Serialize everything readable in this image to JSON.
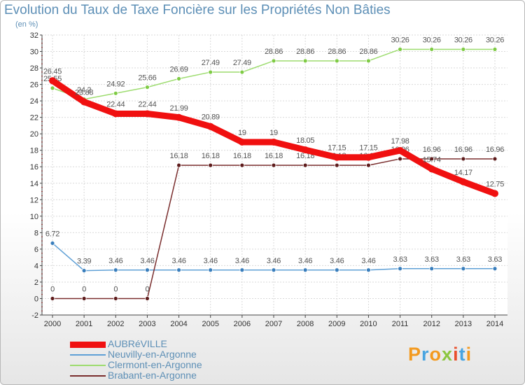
{
  "title": "Evolution du Taux de Taxe Foncière sur les Propriétés Non Bâties",
  "subtitle": "(en %)",
  "logo_letters": [
    "P",
    "r",
    "o",
    "x",
    "i",
    "t",
    "i"
  ],
  "logo_colors": [
    "#f39a1f",
    "#48a4e0",
    "#f39a1f",
    "#8cc63f",
    "#e94f2d",
    "#48a4e0",
    "#f39a1f"
  ],
  "chart_data": {
    "type": "line",
    "title": "Evolution du Taux de Taxe Foncière sur les Propriétés Non Bâties",
    "ylabel": "(en %)",
    "xlabel": "",
    "x": [
      "2000",
      "2001",
      "2002",
      "2003",
      "2004",
      "2005",
      "2006",
      "2007",
      "2008",
      "2009",
      "2010",
      "2011",
      "2012",
      "2013",
      "2014"
    ],
    "y_ticks": [
      -2,
      0,
      2,
      4,
      6,
      8,
      10,
      12,
      14,
      16,
      18,
      20,
      22,
      24,
      26,
      28,
      30,
      32
    ],
    "ylim": [
      -2,
      32
    ],
    "grid": true,
    "legend_position": "bottom-left",
    "series": [
      {
        "name": "Neuvilly-en-Argonne",
        "color": "#5fa0d6",
        "marker": "#3a7ebc",
        "thick": false,
        "values": [
          6.72,
          3.39,
          3.46,
          3.46,
          3.46,
          3.46,
          3.46,
          3.46,
          3.46,
          3.46,
          3.46,
          3.63,
          3.63,
          3.63,
          3.63
        ],
        "labels": [
          "6.72",
          "3.39",
          "3.46",
          "3.46",
          "3.46",
          "3.46",
          "3.46",
          "3.46",
          "3.46",
          "3.46",
          "3.46",
          "3.63",
          "3.63",
          "3.63",
          "3.63"
        ]
      },
      {
        "name": "Clermont-en-Argonne",
        "color": "#9ddc6f",
        "marker": "#7fcb45",
        "thick": false,
        "values": [
          25.55,
          24.2,
          24.92,
          25.66,
          26.69,
          27.49,
          27.49,
          28.86,
          28.86,
          28.86,
          28.86,
          30.26,
          30.26,
          30.26,
          30.26
        ],
        "labels": [
          "25.55",
          "24.2",
          "24.92",
          "25.66",
          "26.69",
          "27.49",
          "27.49",
          "28.86",
          "28.86",
          "28.86",
          "28.86",
          "30.26",
          "30.26",
          "30.26",
          "30.26"
        ]
      },
      {
        "name": "Brabant-en-Argonne",
        "color": "#7a2e2e",
        "marker": "#5e1c1c",
        "thick": false,
        "values": [
          0,
          0,
          0,
          0,
          16.18,
          16.18,
          16.18,
          16.18,
          16.18,
          16.18,
          16.18,
          16.96,
          16.96,
          16.96,
          16.96
        ],
        "labels": [
          "0",
          "0",
          "0",
          "0",
          "16.18",
          "16.18",
          "16.18",
          "16.18",
          "16.18",
          "16.18",
          "16.18",
          "16.96",
          "16.96",
          "16.96",
          "16.96"
        ]
      },
      {
        "name": "AUBRéVILLE",
        "color": "#f01010",
        "marker": "#f01010",
        "thick": true,
        "values": [
          26.45,
          23.88,
          22.44,
          22.44,
          21.99,
          20.89,
          19,
          19,
          18.05,
          17.15,
          17.15,
          17.98,
          15.74,
          14.17,
          12.75
        ],
        "labels": [
          "26.45",
          "23.88",
          "22.44",
          "22.44",
          "21.99",
          "20.89",
          "19",
          "19",
          "18.05",
          "17.15",
          "17.15",
          "17.98",
          "15.74",
          "14.17",
          "12.75"
        ]
      }
    ],
    "legend": [
      {
        "name": "AUBRéVILLE",
        "color": "#f01010",
        "thick": true
      },
      {
        "name": "Neuvilly-en-Argonne",
        "color": "#5fa0d6",
        "thick": false
      },
      {
        "name": "Clermont-en-Argonne",
        "color": "#9ddc6f",
        "thick": false
      },
      {
        "name": "Brabant-en-Argonne",
        "color": "#7a2e2e",
        "thick": false
      }
    ]
  }
}
